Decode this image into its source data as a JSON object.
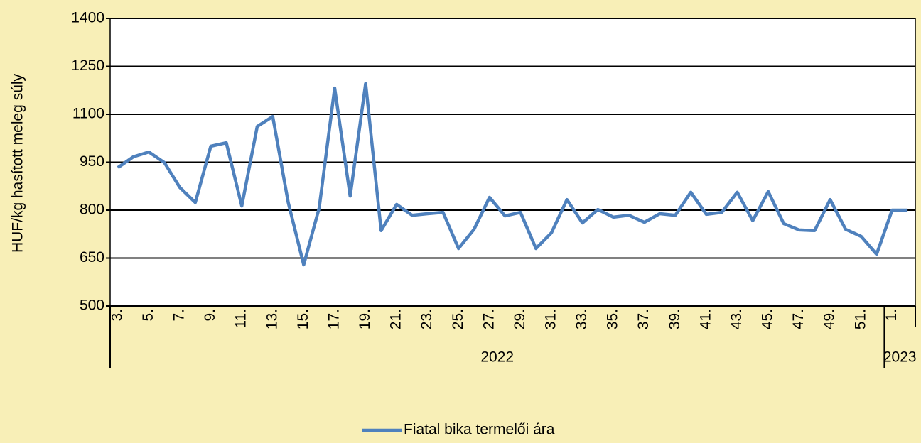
{
  "chart_data": {
    "type": "line",
    "y_label": "HUF/kg hasított meleg súly",
    "categories": [
      "3.",
      null,
      "5.",
      null,
      "7.",
      null,
      "9.",
      null,
      "11.",
      null,
      "13.",
      null,
      "15.",
      null,
      "17.",
      null,
      "19.",
      null,
      "21.",
      null,
      "23.",
      null,
      "25.",
      null,
      "27.",
      null,
      "29.",
      null,
      "31.",
      null,
      "33.",
      null,
      "35.",
      null,
      "37.",
      null,
      "39.",
      null,
      "41.",
      null,
      "43.",
      null,
      "45.",
      null,
      "47.",
      null,
      "49.",
      null,
      "51.",
      null,
      "1.",
      null
    ],
    "x_groups": [
      {
        "label": "2022",
        "count": 50
      },
      {
        "label": "2023",
        "count": 2
      }
    ],
    "series": [
      {
        "name": "Fiatal bika termelői ára",
        "color": "#4f81bd",
        "values": [
          933,
          967,
          982,
          949,
          871,
          824,
          1000,
          1011,
          813,
          1062,
          1093,
          824,
          629,
          807,
          1182,
          844,
          1196,
          736,
          818,
          784,
          789,
          793,
          680,
          740,
          840,
          782,
          793,
          680,
          729,
          833,
          760,
          802,
          778,
          784,
          762,
          789,
          784,
          856,
          787,
          793,
          856,
          767,
          858,
          758,
          738,
          736,
          833,
          740,
          718,
          662,
          800,
          800
        ]
      }
    ],
    "ylim": [
      500,
      1400
    ],
    "yticks": [
      500,
      650,
      800,
      950,
      1100,
      1250,
      1400
    ],
    "grid": true,
    "legend": "bottom"
  }
}
